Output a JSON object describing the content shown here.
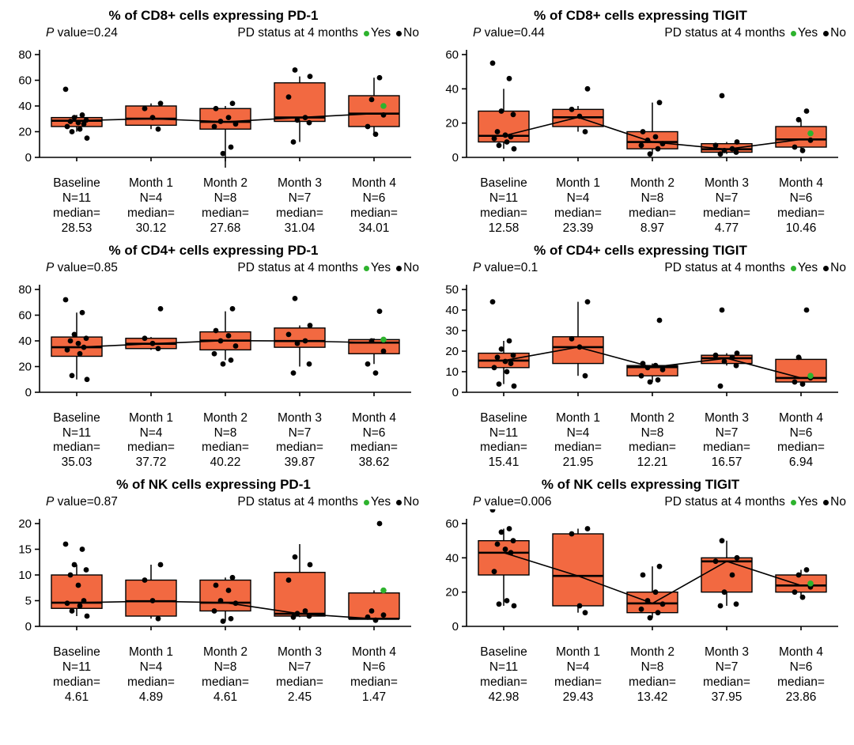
{
  "legend": {
    "group_label": "PD status at 4 months",
    "yes_label": "Yes",
    "no_label": "No",
    "yes_color": "#2eb32e",
    "no_color": "#000000"
  },
  "colors": {
    "box_fill": "#f26941",
    "box_stroke": "#000000",
    "axis": "#000000"
  },
  "median_prefix": "median=",
  "chart_data": [
    {
      "type": "box",
      "title": "% of CD8+ cells expressing PD-1",
      "p_italic": "P",
      "p_rest": " value=0.24",
      "ylim": [
        0,
        80
      ],
      "yticks": [
        0,
        20,
        40,
        60,
        80
      ],
      "categories": [
        "Baseline",
        "Month 1",
        "Month 2",
        "Month 3",
        "Month 4"
      ],
      "n_labels": [
        "N=11",
        "N=4",
        "N=8",
        "N=7",
        "N=6"
      ],
      "medians": [
        28.53,
        30.12,
        27.68,
        31.04,
        34.01
      ],
      "median_labels": [
        "28.53",
        "30.12",
        "27.68",
        "31.04",
        "34.01"
      ],
      "boxes": [
        {
          "lo": 20,
          "q1": 24,
          "q3": 31,
          "hi": 33
        },
        {
          "lo": 22,
          "q1": 25,
          "q3": 40,
          "hi": 42
        },
        {
          "lo": -8,
          "q1": 22,
          "q3": 38,
          "hi": 40
        },
        {
          "lo": 12,
          "q1": 28,
          "q3": 58,
          "hi": 63
        },
        {
          "lo": 18,
          "q1": 24,
          "q3": 48,
          "hi": 62
        }
      ],
      "points": [
        [
          53,
          33,
          31,
          29,
          28,
          27,
          26,
          24,
          22,
          20,
          15
        ],
        [
          42,
          38,
          31,
          22
        ],
        [
          42,
          38,
          31,
          28,
          26,
          24,
          8,
          3
        ],
        [
          68,
          63,
          47,
          31,
          29,
          27,
          12
        ],
        [
          62,
          45,
          33,
          24,
          18
        ]
      ],
      "yes_point": {
        "category_index": 4,
        "value": 40
      }
    },
    {
      "type": "box",
      "title": "% of CD8+ cells expressing TIGIT",
      "p_italic": "P",
      "p_rest": " value=0.44",
      "ylim": [
        0,
        60
      ],
      "yticks": [
        0,
        20,
        40,
        60
      ],
      "categories": [
        "Baseline",
        "Month 1",
        "Month 2",
        "Month 3",
        "Month 4"
      ],
      "n_labels": [
        "N=11",
        "N=4",
        "N=8",
        "N=7",
        "N=6"
      ],
      "medians": [
        12.58,
        23.39,
        8.97,
        4.77,
        10.46
      ],
      "median_labels": [
        "12.58",
        "23.39",
        "8.97",
        "4.77",
        "10.46"
      ],
      "boxes": [
        {
          "lo": 5,
          "q1": 9,
          "q3": 27,
          "hi": 40
        },
        {
          "lo": 15,
          "q1": 18,
          "q3": 28,
          "hi": 30
        },
        {
          "lo": 2,
          "q1": 5,
          "q3": 15,
          "hi": 32
        },
        {
          "lo": 2,
          "q1": 3,
          "q3": 8,
          "hi": 9
        },
        {
          "lo": 4,
          "q1": 6,
          "q3": 18,
          "hi": 22
        }
      ],
      "points": [
        [
          55,
          46,
          27,
          25,
          15,
          13,
          12,
          11,
          9,
          7,
          5
        ],
        [
          40,
          28,
          24,
          15
        ],
        [
          32,
          15,
          12,
          10,
          8,
          7,
          5,
          2
        ],
        [
          36,
          9,
          7,
          5,
          4,
          3,
          2
        ],
        [
          27,
          22,
          10,
          6,
          4
        ]
      ],
      "yes_point": {
        "category_index": 4,
        "value": 14
      }
    },
    {
      "type": "box",
      "title": "% of CD4+ cells expressing PD-1",
      "p_italic": "P",
      "p_rest": " value=0.85",
      "ylim": [
        0,
        80
      ],
      "yticks": [
        0,
        20,
        40,
        60,
        80
      ],
      "categories": [
        "Baseline",
        "Month 1",
        "Month 2",
        "Month 3",
        "Month 4"
      ],
      "n_labels": [
        "N=11",
        "N=4",
        "N=8",
        "N=7",
        "N=6"
      ],
      "medians": [
        35.03,
        37.72,
        40.22,
        39.87,
        38.62
      ],
      "median_labels": [
        "35.03",
        "37.72",
        "40.22",
        "39.87",
        "38.62"
      ],
      "boxes": [
        {
          "lo": 10,
          "q1": 28,
          "q3": 43,
          "hi": 62
        },
        {
          "lo": 33,
          "q1": 34,
          "q3": 42,
          "hi": 43
        },
        {
          "lo": 25,
          "q1": 33,
          "q3": 47,
          "hi": 63
        },
        {
          "lo": 20,
          "q1": 35,
          "q3": 50,
          "hi": 52
        },
        {
          "lo": 22,
          "q1": 30,
          "q3": 41,
          "hi": 42
        }
      ],
      "points": [
        [
          72,
          62,
          45,
          42,
          40,
          38,
          35,
          33,
          30,
          13,
          10
        ],
        [
          65,
          42,
          38,
          34
        ],
        [
          65,
          48,
          44,
          40,
          36,
          30,
          25,
          22
        ],
        [
          73,
          52,
          45,
          40,
          38,
          22,
          15
        ],
        [
          63,
          40,
          32,
          22,
          15
        ]
      ],
      "yes_point": {
        "category_index": 4,
        "value": 41
      }
    },
    {
      "type": "box",
      "title": "% of CD4+ cells expressing TIGIT",
      "p_italic": "P",
      "p_rest": " value=0.1",
      "ylim": [
        0,
        50
      ],
      "yticks": [
        0,
        10,
        20,
        30,
        40,
        50
      ],
      "categories": [
        "Baseline",
        "Month 1",
        "Month 2",
        "Month 3",
        "Month 4"
      ],
      "n_labels": [
        "N=11",
        "N=4",
        "N=8",
        "N=7",
        "N=6"
      ],
      "medians": [
        15.41,
        21.95,
        12.21,
        16.57,
        6.94
      ],
      "median_labels": [
        "15.41",
        "21.95",
        "12.21",
        "16.57",
        "6.94"
      ],
      "boxes": [
        {
          "lo": 4,
          "q1": 12,
          "q3": 19,
          "hi": 25
        },
        {
          "lo": 8,
          "q1": 14,
          "q3": 27,
          "hi": 44
        },
        {
          "lo": 5,
          "q1": 8,
          "q3": 13,
          "hi": 14
        },
        {
          "lo": 13,
          "q1": 14,
          "q3": 18,
          "hi": 19
        },
        {
          "lo": 4,
          "q1": 5,
          "q3": 16,
          "hi": 17
        }
      ],
      "points": [
        [
          44,
          25,
          21,
          18,
          17,
          15,
          14,
          12,
          10,
          4,
          3
        ],
        [
          44,
          26,
          22,
          8
        ],
        [
          35,
          14,
          13,
          12,
          11,
          8,
          6,
          5
        ],
        [
          40,
          19,
          18,
          17,
          15,
          13,
          3
        ],
        [
          40,
          17,
          7,
          5,
          4
        ]
      ],
      "yes_point": {
        "category_index": 4,
        "value": 8
      }
    },
    {
      "type": "box",
      "title": "% of NK cells expressing PD-1",
      "p_italic": "P",
      "p_rest": " value=0.87",
      "ylim": [
        0,
        20
      ],
      "yticks": [
        0,
        5,
        10,
        15,
        20
      ],
      "categories": [
        "Baseline",
        "Month 1",
        "Month 2",
        "Month 3",
        "Month 4"
      ],
      "n_labels": [
        "N=11",
        "N=4",
        "N=8",
        "N=7",
        "N=6"
      ],
      "medians": [
        4.61,
        4.89,
        4.61,
        2.45,
        1.47
      ],
      "median_labels": [
        "4.61",
        "4.89",
        "4.61",
        "2.45",
        "1.47"
      ],
      "boxes": [
        {
          "lo": 2,
          "q1": 3.5,
          "q3": 10,
          "hi": 12
        },
        {
          "lo": 1.5,
          "q1": 2,
          "q3": 9,
          "hi": 12
        },
        {
          "lo": 1,
          "q1": 3,
          "q3": 9,
          "hi": 9.5
        },
        {
          "lo": 1.8,
          "q1": 2,
          "q3": 10.5,
          "hi": 16
        },
        {
          "lo": 1.2,
          "q1": 1.5,
          "q3": 6.5,
          "hi": 7
        }
      ],
      "points": [
        [
          16,
          15,
          12,
          11,
          10,
          8,
          5,
          4.5,
          4,
          3,
          2
        ],
        [
          12,
          9,
          5,
          1.5
        ],
        [
          9.5,
          8,
          7,
          5,
          4.5,
          3,
          1.5,
          1
        ],
        [
          13.5,
          12,
          9,
          3,
          2.5,
          2,
          1.8
        ],
        [
          20,
          3,
          2.2,
          1.8,
          1.2
        ]
      ],
      "yes_point": {
        "category_index": 4,
        "value": 7
      }
    },
    {
      "type": "box",
      "title": "% of NK cells expressing TIGIT",
      "p_italic": "P",
      "p_rest": " value=0.006",
      "ylim": [
        0,
        60
      ],
      "yticks": [
        0,
        20,
        40,
        60
      ],
      "categories": [
        "Baseline",
        "Month 1",
        "Month 2",
        "Month 3",
        "Month 4"
      ],
      "n_labels": [
        "N=11",
        "N=4",
        "N=8",
        "N=7",
        "N=6"
      ],
      "medians": [
        42.98,
        29.43,
        13.42,
        37.95,
        23.86
      ],
      "median_labels": [
        "42.98",
        "29.43",
        "13.42",
        "37.95",
        "23.86"
      ],
      "boxes": [
        {
          "lo": 12,
          "q1": 30,
          "q3": 50,
          "hi": 57
        },
        {
          "lo": 8,
          "q1": 12,
          "q3": 54,
          "hi": 57
        },
        {
          "lo": 5,
          "q1": 8,
          "q3": 20,
          "hi": 35
        },
        {
          "lo": 12,
          "q1": 20,
          "q3": 40,
          "hi": 50
        },
        {
          "lo": 17,
          "q1": 20,
          "q3": 30,
          "hi": 33
        }
      ],
      "points": [
        [
          68,
          57,
          55,
          50,
          48,
          45,
          43,
          32,
          15,
          13,
          12
        ],
        [
          57,
          54,
          12,
          8
        ],
        [
          35,
          30,
          20,
          15,
          13,
          10,
          8,
          5
        ],
        [
          50,
          40,
          38,
          30,
          20,
          13,
          12
        ],
        [
          33,
          30,
          23,
          20,
          17
        ]
      ],
      "yes_point": {
        "category_index": 4,
        "value": 25
      }
    }
  ]
}
